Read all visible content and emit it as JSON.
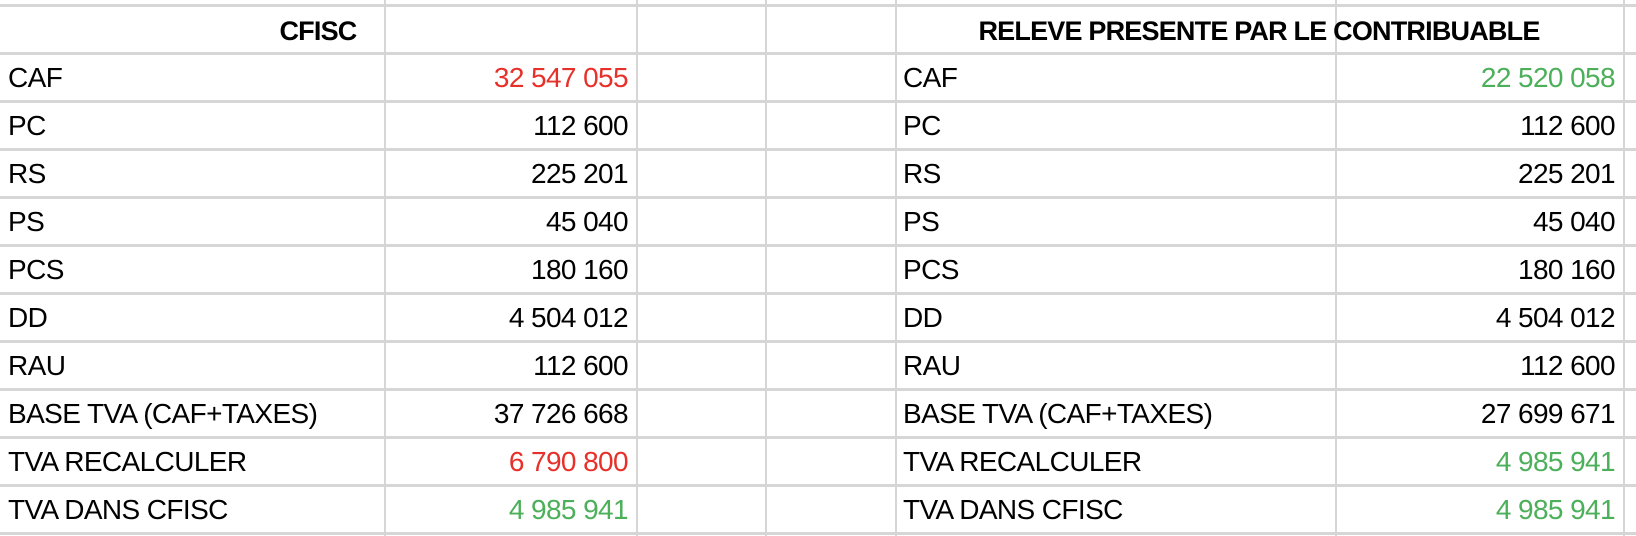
{
  "colors": {
    "red": "#e8302a",
    "green": "#4caf5a",
    "grid": "#d6d6d6"
  },
  "left": {
    "title": "CFISC",
    "rows": [
      {
        "label": "CAF",
        "value": "32 547 055",
        "color": "red"
      },
      {
        "label": "PC",
        "value": "112 600",
        "color": "black"
      },
      {
        "label": "RS",
        "value": "225 201",
        "color": "black"
      },
      {
        "label": "PS",
        "value": "45 040",
        "color": "black"
      },
      {
        "label": "PCS",
        "value": "180 160",
        "color": "black"
      },
      {
        "label": "DD",
        "value": "4 504 012",
        "color": "black"
      },
      {
        "label": "RAU",
        "value": "112 600",
        "color": "black"
      },
      {
        "label": "BASE TVA (CAF+TAXES)",
        "value": "37 726 668",
        "color": "black"
      },
      {
        "label": "TVA RECALCULER",
        "value": "6 790 800",
        "color": "red"
      },
      {
        "label": "TVA DANS CFISC",
        "value": "4 985 941",
        "color": "green"
      }
    ]
  },
  "right": {
    "title": "RELEVE PRESENTE PAR LE CONTRIBUABLE",
    "rows": [
      {
        "label": "CAF",
        "value": "22 520 058",
        "color": "green"
      },
      {
        "label": "PC",
        "value": "112 600",
        "color": "black"
      },
      {
        "label": "RS",
        "value": "225 201",
        "color": "black"
      },
      {
        "label": "PS",
        "value": "45 040",
        "color": "black"
      },
      {
        "label": "PCS",
        "value": "180 160",
        "color": "black"
      },
      {
        "label": "DD",
        "value": "4 504 012",
        "color": "black"
      },
      {
        "label": "RAU",
        "value": "112 600",
        "color": "black"
      },
      {
        "label": "BASE TVA (CAF+TAXES)",
        "value": "27 699 671",
        "color": "black"
      },
      {
        "label": "TVA RECALCULER",
        "value": "4 985 941",
        "color": "green"
      },
      {
        "label": "TVA DANS CFISC",
        "value": "4 985 941",
        "color": "green"
      }
    ]
  }
}
